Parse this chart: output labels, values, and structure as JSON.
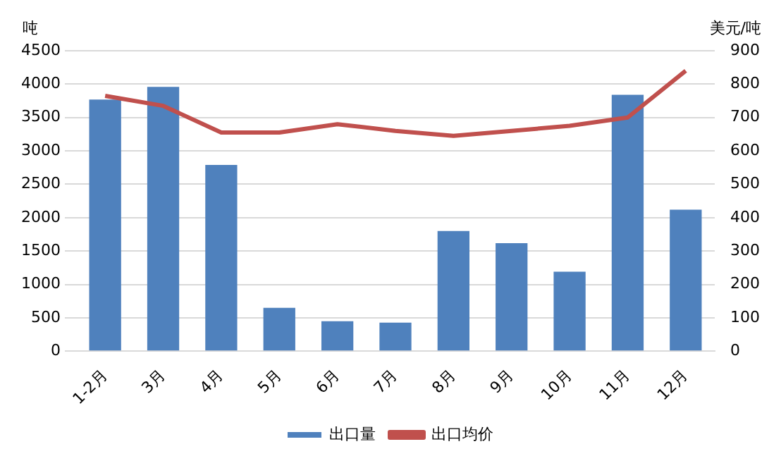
{
  "chart_data": {
    "type": "bar",
    "ylabel": "吨",
    "y2label": "美元/吨",
    "categories": [
      "1-2月",
      "3月",
      "4月",
      "5月",
      "6月",
      "7月",
      "8月",
      "9月",
      "10月",
      "11月",
      "12月"
    ],
    "series": [
      {
        "name": "出口量",
        "color": "#4f81bd",
        "values": [
          3770,
          3960,
          2790,
          650,
          450,
          430,
          1800,
          1620,
          1190,
          3840,
          2120
        ]
      },
      {
        "name": "出口均价",
        "type": "line",
        "axis": "y2",
        "color": "#c0504d",
        "values": [
          765,
          735,
          655,
          655,
          680,
          660,
          645,
          660,
          675,
          700,
          840
        ]
      }
    ],
    "ylim": [
      0,
      4500
    ],
    "yticks": [
      0,
      500,
      1000,
      1500,
      2000,
      2500,
      3000,
      3500,
      4000,
      4500
    ],
    "y2lim": [
      0,
      900
    ],
    "y2ticks": [
      0,
      100,
      200,
      300,
      400,
      500,
      600,
      700,
      800,
      900
    ],
    "grid": "y",
    "legend": "bottom",
    "marker": "none"
  }
}
